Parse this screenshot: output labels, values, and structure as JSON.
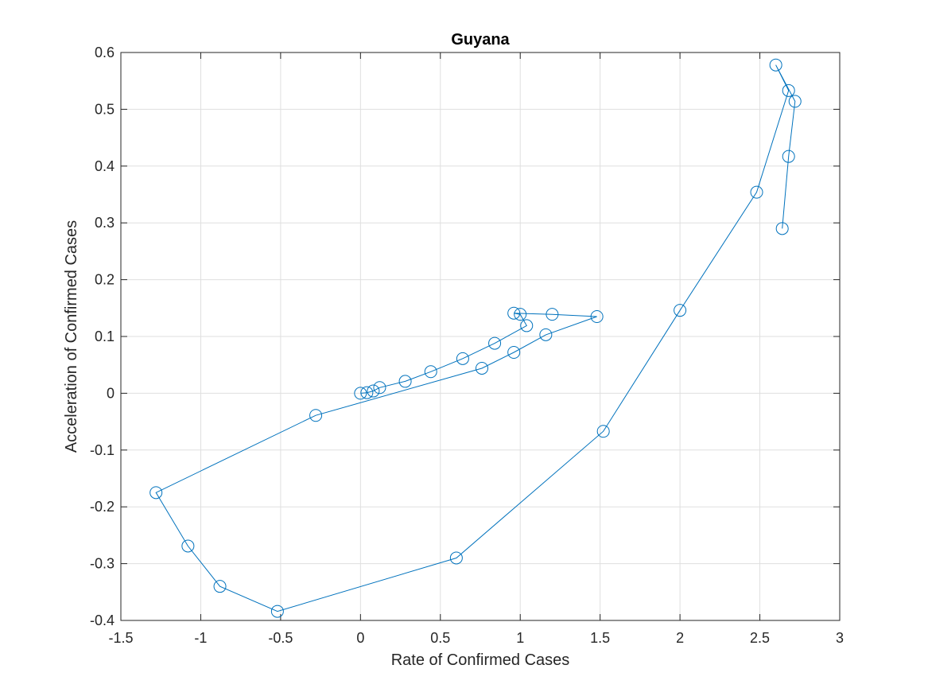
{
  "colors": {
    "series": "#0072BD",
    "grid": "#dfdfdf",
    "axis": "#262626",
    "background": "#ffffff"
  },
  "chart_data": {
    "type": "line",
    "title": "Guyana",
    "xlabel": "Rate of Confirmed Cases",
    "ylabel": "Acceleration of Confirmed Cases",
    "xlim": [
      -1.5,
      3
    ],
    "ylim": [
      -0.4,
      0.6
    ],
    "xticks": [
      -1.5,
      -1,
      -0.5,
      0,
      0.5,
      1,
      1.5,
      2,
      2.5,
      3
    ],
    "yticks": [
      -0.4,
      -0.3,
      -0.2,
      -0.1,
      0,
      0.1,
      0.2,
      0.3,
      0.4,
      0.5,
      0.6
    ],
    "xtick_labels": [
      "-1.5",
      "-1",
      "-0.5",
      "0",
      "0.5",
      "1",
      "1.5",
      "2",
      "2.5",
      "3"
    ],
    "ytick_labels": [
      "-0.4",
      "-0.3",
      "-0.2",
      "-0.1",
      "0",
      "0.1",
      "0.2",
      "0.3",
      "0.4",
      "0.5",
      "0.6"
    ],
    "grid": true,
    "marker": "circle",
    "series": [
      {
        "x": [
          0,
          0.04,
          0.08,
          0.12,
          0.28,
          0.44,
          0.64,
          0.84,
          1.04,
          1.0,
          0.96,
          1.2,
          1.48,
          1.16,
          0.96,
          0.76,
          -0.28,
          -1.28,
          -1.08,
          -0.88,
          -0.52,
          0.6,
          1.52,
          2.0,
          2.48,
          2.68,
          2.6,
          2.72,
          2.68,
          2.64
        ],
        "y": [
          0,
          0.001,
          0.004,
          0.01,
          0.021,
          0.038,
          0.061,
          0.088,
          0.119,
          0.139,
          0.141,
          0.139,
          0.135,
          0.103,
          0.072,
          0.044,
          -0.039,
          -0.175,
          -0.269,
          -0.34,
          -0.384,
          -0.29,
          -0.067,
          0.146,
          0.354,
          0.533,
          0.578,
          0.514,
          0.417,
          0.29
        ]
      }
    ]
  }
}
